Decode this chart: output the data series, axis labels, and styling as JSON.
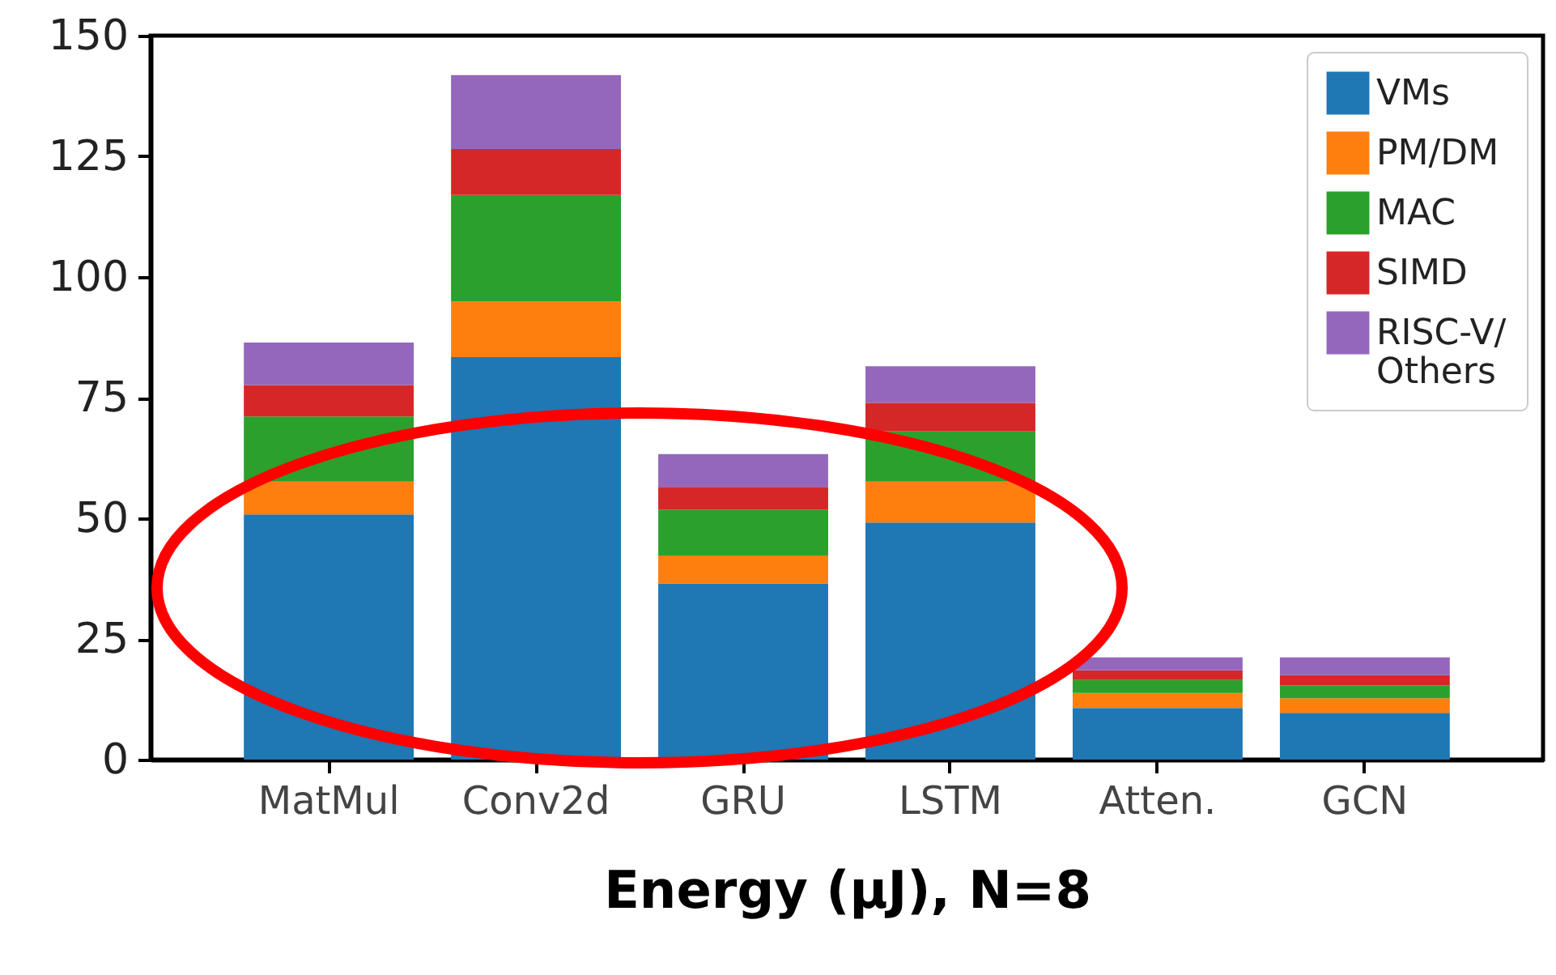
{
  "chart_data": {
    "type": "bar",
    "stacked": true,
    "xlabel": "Energy (μJ), N=8",
    "categories": [
      "MatMul",
      "Conv2d",
      "GRU",
      "LSTM",
      "Atten.",
      "GCN"
    ],
    "series": [
      {
        "name": "VMs",
        "color": "#1f77b4",
        "values": [
          50.8,
          83.4,
          36.5,
          49.1,
          10.7,
          9.7
        ]
      },
      {
        "name": "PM/DM",
        "color": "#ff7f0e",
        "values": [
          6.8,
          11.5,
          5.8,
          8.5,
          3.1,
          3.0
        ]
      },
      {
        "name": "MAC",
        "color": "#2ca02c",
        "values": [
          13.5,
          22.1,
          9.5,
          10.4,
          2.7,
          2.7
        ]
      },
      {
        "name": "SIMD",
        "color": "#d62728",
        "values": [
          6.5,
          9.5,
          4.7,
          5.9,
          2.0,
          2.1
        ]
      },
      {
        "name": "RISC-V/ Others",
        "color": "#9467bd",
        "values": [
          8.8,
          15.3,
          6.8,
          7.6,
          2.7,
          3.7
        ]
      }
    ],
    "ylim": [
      0,
      150
    ],
    "yticks": [
      0,
      25,
      50,
      75,
      100,
      125,
      150
    ],
    "legend": "top right",
    "grid": false
  }
}
